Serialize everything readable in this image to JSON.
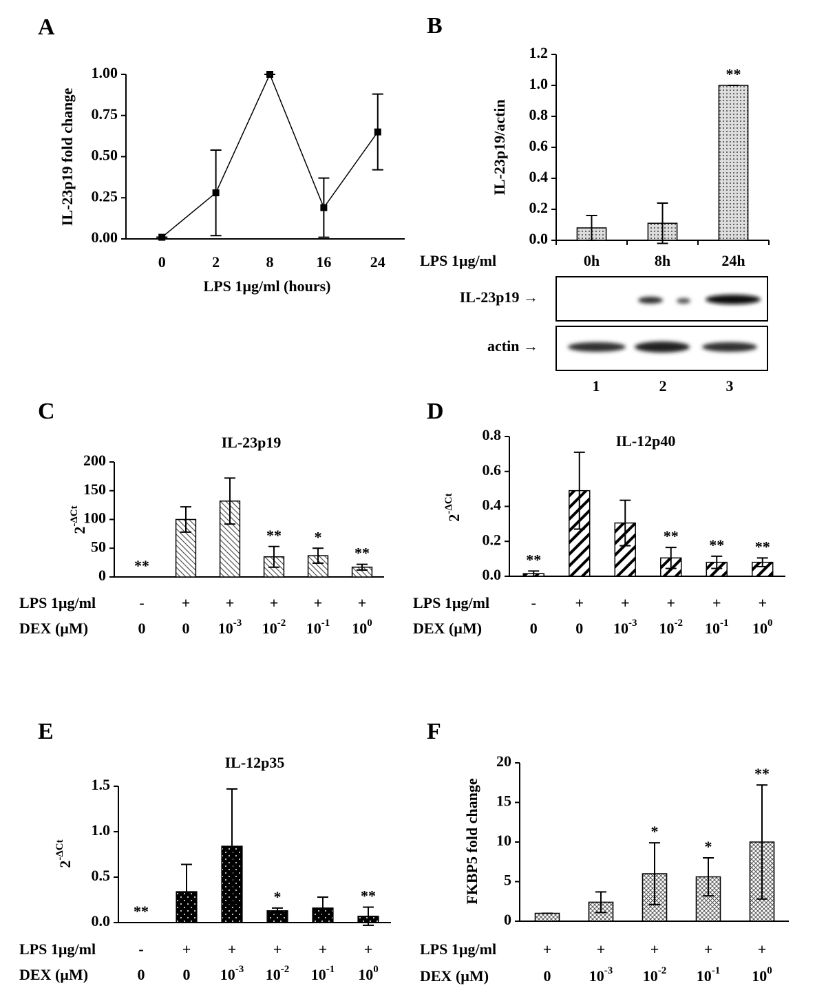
{
  "chart_data": [
    {
      "type": "line",
      "label": "A",
      "ylabel": "IL-23p19 fold change",
      "xlabel": "LPS 1µg/ml (hours)",
      "categories": [
        "0",
        "2",
        "8",
        "16",
        "24"
      ],
      "values": [
        0.01,
        0.28,
        1.0,
        0.19,
        0.65
      ],
      "errors": [
        0,
        0.26,
        0,
        0.18,
        0.23
      ],
      "color": "#000000",
      "ylim": [
        0,
        1
      ],
      "yticks": [
        {
          "value": 0,
          "label": "0.00"
        },
        0.25,
        {
          "value": 0.5,
          "label": "0.50"
        },
        0.75,
        {
          "value": 1,
          "label": "1.00"
        }
      ]
    },
    {
      "type": "bar",
      "label": "B",
      "ylabel": "IL-23p19/actin",
      "row_label": "LPS 1µg/ml",
      "categories": [
        "0h",
        "8h",
        "24h"
      ],
      "values": [
        0.08,
        0.11,
        1.0
      ],
      "errors": [
        0.08,
        0.13,
        0
      ],
      "significance": [
        null,
        null,
        "**"
      ],
      "color": "#000000",
      "ylim": [
        0,
        1.2
      ],
      "yticks": [
        {
          "value": 0,
          "label": "0.0"
        },
        0.2,
        0.4,
        0.6,
        0.8,
        {
          "value": 1,
          "label": "1.0"
        },
        1.2
      ],
      "blot": {
        "rows": [
          "IL-23p19 →",
          "actin →"
        ],
        "lanes": [
          "1",
          "2",
          "3"
        ]
      }
    },
    {
      "type": "bar",
      "label": "C",
      "title": "IL-23p19",
      "ylabel": {
        "base": "2",
        "exponent": "-ΔCt"
      },
      "rows": [
        {
          "label": "LPS 1µg/ml",
          "values": [
            "-",
            "+",
            "+",
            "+",
            "+",
            "+"
          ]
        },
        {
          "label": "DEX (µM)",
          "values": [
            "0",
            "0",
            {
              "base": "10",
              "exponent": "-3"
            },
            {
              "base": "10",
              "exponent": "-2"
            },
            {
              "base": "10",
              "exponent": "-1"
            },
            {
              "base": "10",
              "exponent": "0"
            }
          ]
        }
      ],
      "values": [
        0,
        100,
        132,
        35,
        37,
        17
      ],
      "errors": [
        0,
        22,
        40,
        18,
        13,
        5
      ],
      "significance": [
        "**",
        null,
        null,
        "**",
        "*",
        "**"
      ],
      "color": "#000000",
      "ylim": [
        0,
        200
      ],
      "yticks": [
        0,
        50,
        100,
        150,
        200
      ]
    },
    {
      "type": "bar",
      "label": "D",
      "title": "IL-12p40",
      "ylabel": {
        "base": "2",
        "exponent": "-ΔCt"
      },
      "rows": [
        {
          "label": "LPS 1µg/ml",
          "values": [
            "-",
            "+",
            "+",
            "+",
            "+",
            "+"
          ]
        },
        {
          "label": "DEX (µM)",
          "values": [
            "0",
            "0",
            {
              "base": "10",
              "exponent": "-3"
            },
            {
              "base": "10",
              "exponent": "-2"
            },
            {
              "base": "10",
              "exponent": "-1"
            },
            {
              "base": "10",
              "exponent": "0"
            }
          ]
        }
      ],
      "values": [
        0.015,
        0.49,
        0.305,
        0.105,
        0.08,
        0.08
      ],
      "errors": [
        0.015,
        0.22,
        0.13,
        0.06,
        0.035,
        0.025
      ],
      "significance": [
        "**",
        null,
        null,
        "**",
        "**",
        "**"
      ],
      "color": "#000000",
      "ylim": [
        0,
        0.8
      ],
      "yticks": [
        {
          "value": 0,
          "label": "0.0"
        },
        0.2,
        0.4,
        0.6,
        0.8
      ]
    },
    {
      "type": "bar",
      "label": "E",
      "title": "IL-12p35",
      "ylabel": {
        "base": "2",
        "exponent": "-ΔCt"
      },
      "rows": [
        {
          "label": "LPS 1µg/ml",
          "values": [
            "-",
            "+",
            "+",
            "+",
            "+",
            "+"
          ]
        },
        {
          "label": "DEX (µM)",
          "values": [
            "0",
            "0",
            {
              "base": "10",
              "exponent": "-3"
            },
            {
              "base": "10",
              "exponent": "-2"
            },
            {
              "base": "10",
              "exponent": "-1"
            },
            {
              "base": "10",
              "exponent": "0"
            }
          ]
        }
      ],
      "values": [
        0,
        0.34,
        0.84,
        0.13,
        0.16,
        0.07
      ],
      "errors": [
        0,
        0.3,
        0.63,
        0.03,
        0.12,
        0.1
      ],
      "significance": [
        "**",
        null,
        null,
        "*",
        null,
        "**"
      ],
      "color": "#000000",
      "ylim": [
        0,
        1.5
      ],
      "yticks": [
        {
          "value": 0,
          "label": "0.0"
        },
        0.5,
        {
          "value": 1,
          "label": "1.0"
        },
        1.5
      ]
    },
    {
      "type": "bar",
      "label": "F",
      "ylabel": "FKBP5 fold change",
      "rows": [
        {
          "label": "LPS 1µg/ml",
          "values": [
            "+",
            "+",
            "+",
            "+",
            "+"
          ]
        },
        {
          "label": "DEX (µM)",
          "values": [
            "0",
            {
              "base": "10",
              "exponent": "-3"
            },
            {
              "base": "10",
              "exponent": "-2"
            },
            {
              "base": "10",
              "exponent": "-1"
            },
            {
              "base": "10",
              "exponent": "0"
            }
          ]
        }
      ],
      "values": [
        1,
        2.4,
        6.0,
        5.6,
        10.0
      ],
      "errors": [
        0,
        1.3,
        3.9,
        2.4,
        7.2
      ],
      "significance": [
        null,
        null,
        "*",
        "*",
        "**"
      ],
      "color": "#000000",
      "ylim": [
        0,
        20
      ],
      "yticks": [
        0,
        5,
        10,
        15,
        20
      ]
    }
  ]
}
